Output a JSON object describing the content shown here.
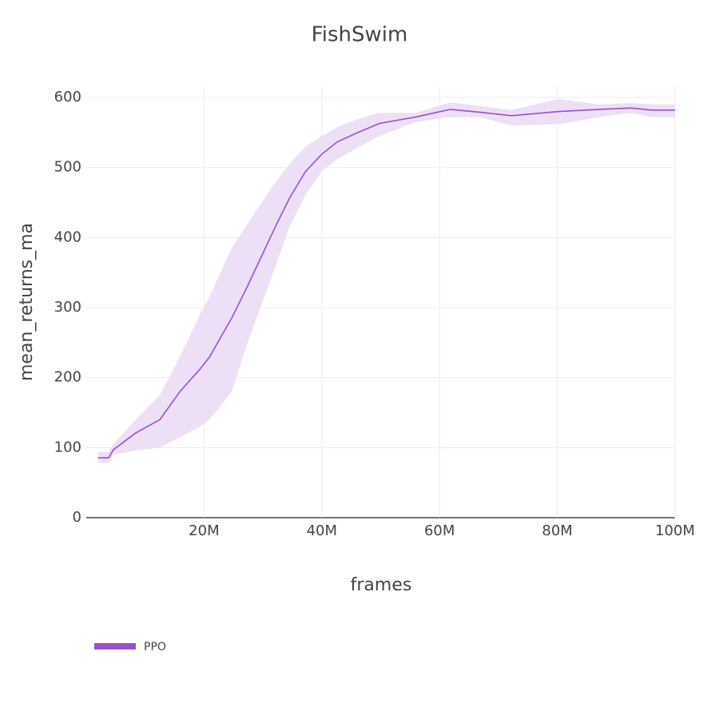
{
  "chart_data": {
    "type": "line",
    "title": "FishSwim",
    "x_label": "frames",
    "y_label": "mean_returns_ma",
    "x": [
      2000000,
      3800000,
      4600000,
      8400000,
      12500000,
      15900000,
      19300000,
      20900000,
      24700000,
      27400000,
      32200000,
      34500000,
      37200000,
      40000000,
      42700000,
      46400000,
      49800000,
      55900000,
      61800000,
      66800000,
      72200000,
      80300000,
      87100000,
      92500000,
      96000000,
      100000000
    ],
    "series": [
      {
        "name": "PPO",
        "color": "#9c4fcb",
        "band_color": "#eddff5",
        "values": [
          85.5,
          85.5,
          97,
          121,
          140,
          180,
          212,
          229,
          285,
          331,
          417,
          456,
          494,
          519,
          537,
          551,
          563,
          572,
          583,
          579,
          574,
          580,
          583,
          585,
          582,
          582
        ],
        "upper": [
          94,
          94,
          105,
          140,
          175,
          230,
          290,
          315,
          385,
          420,
          480,
          505,
          530,
          545,
          558,
          570,
          578,
          578,
          593,
          588,
          582,
          598,
          590,
          592,
          590,
          590
        ],
        "lower": [
          78,
          78,
          90,
          96,
          100,
          115,
          130,
          140,
          180,
          250,
          360,
          415,
          460,
          495,
          512,
          530,
          545,
          565,
          572,
          572,
          560,
          562,
          572,
          578,
          572,
          572
        ]
      }
    ],
    "xlim": [
      0,
      100000000
    ],
    "xticks": [
      {
        "value": 20000000,
        "label": "20M"
      },
      {
        "value": 40000000,
        "label": "40M"
      },
      {
        "value": 60000000,
        "label": "60M"
      },
      {
        "value": 80000000,
        "label": "80M"
      },
      {
        "value": 100000000,
        "label": "100M"
      }
    ],
    "ylim": [
      0,
      616
    ],
    "yticks": [
      0,
      100,
      200,
      300,
      400,
      500,
      600
    ],
    "grid": true
  }
}
